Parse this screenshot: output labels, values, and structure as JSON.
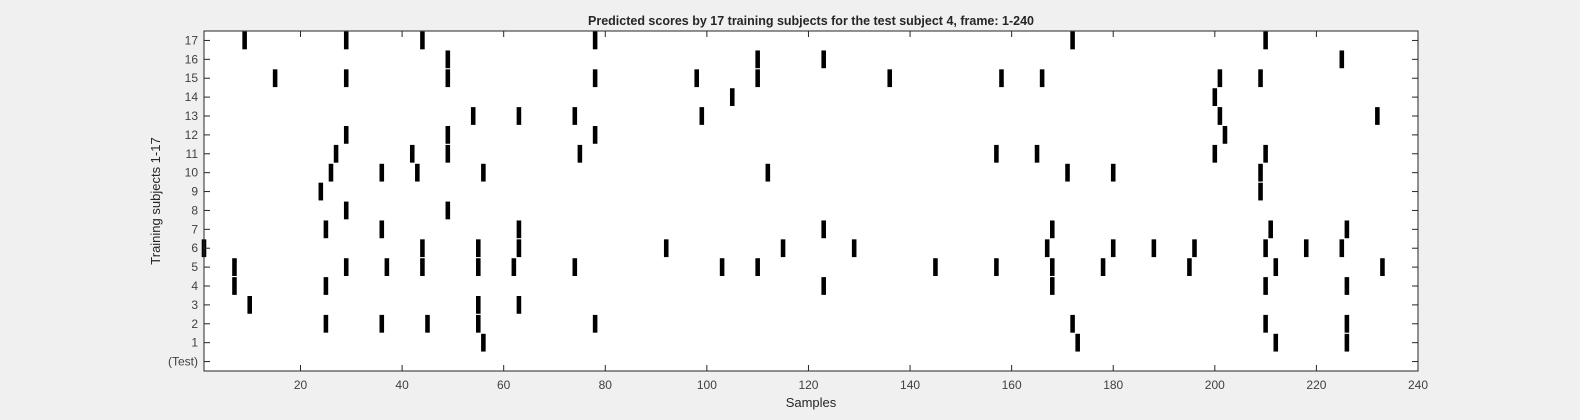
{
  "chart_data": {
    "type": "heatmap",
    "title": "Predicted scores by 17 training subjects for the test subject 4, frame: 1-240",
    "xlabel": "Samples",
    "ylabel": "Training subjects 1-17",
    "xlim": [
      1,
      240
    ],
    "x_ticks": [
      20,
      40,
      60,
      80,
      100,
      120,
      140,
      160,
      180,
      200,
      220,
      240
    ],
    "y_tick_labels": [
      "(Test)",
      "1",
      "2",
      "3",
      "4",
      "5",
      "6",
      "7",
      "8",
      "9",
      "10",
      "11",
      "12",
      "13",
      "14",
      "15",
      "16",
      "17"
    ],
    "grid": false,
    "colors": {
      "mark": "#000000",
      "background": "#ffffff",
      "figure": "#f0f0f0"
    },
    "rows": [
      {
        "label": "(Test)",
        "x": []
      },
      {
        "label": "1",
        "x": [
          56,
          173,
          212,
          226
        ]
      },
      {
        "label": "2",
        "x": [
          25,
          36,
          45,
          55,
          78,
          172,
          210,
          226
        ]
      },
      {
        "label": "3",
        "x": [
          10,
          55,
          63
        ]
      },
      {
        "label": "4",
        "x": [
          7,
          25,
          123,
          168,
          210,
          226
        ]
      },
      {
        "label": "5",
        "x": [
          7,
          29,
          37,
          44,
          55,
          62,
          74,
          103,
          110,
          145,
          157,
          168,
          178,
          195,
          212,
          233
        ]
      },
      {
        "label": "6",
        "x": [
          1,
          44,
          55,
          63,
          92,
          115,
          129,
          167,
          180,
          188,
          196,
          210,
          218,
          225
        ]
      },
      {
        "label": "7",
        "x": [
          25,
          36,
          63,
          123,
          168,
          211,
          226
        ]
      },
      {
        "label": "8",
        "x": [
          29,
          49
        ]
      },
      {
        "label": "9",
        "x": [
          24,
          209
        ]
      },
      {
        "label": "10",
        "x": [
          26,
          36,
          43,
          56,
          112,
          171,
          180,
          209
        ]
      },
      {
        "label": "11",
        "x": [
          27,
          42,
          49,
          75,
          157,
          165,
          200,
          210
        ]
      },
      {
        "label": "12",
        "x": [
          29,
          49,
          78,
          202
        ]
      },
      {
        "label": "13",
        "x": [
          54,
          63,
          74,
          99,
          201,
          232
        ]
      },
      {
        "label": "14",
        "x": [
          105,
          200
        ]
      },
      {
        "label": "15",
        "x": [
          15,
          29,
          49,
          78,
          98,
          110,
          136,
          158,
          166,
          201,
          209
        ]
      },
      {
        "label": "16",
        "x": [
          49,
          110,
          123,
          225
        ]
      },
      {
        "label": "17",
        "x": [
          9,
          29,
          44,
          78,
          172,
          210
        ]
      }
    ]
  }
}
